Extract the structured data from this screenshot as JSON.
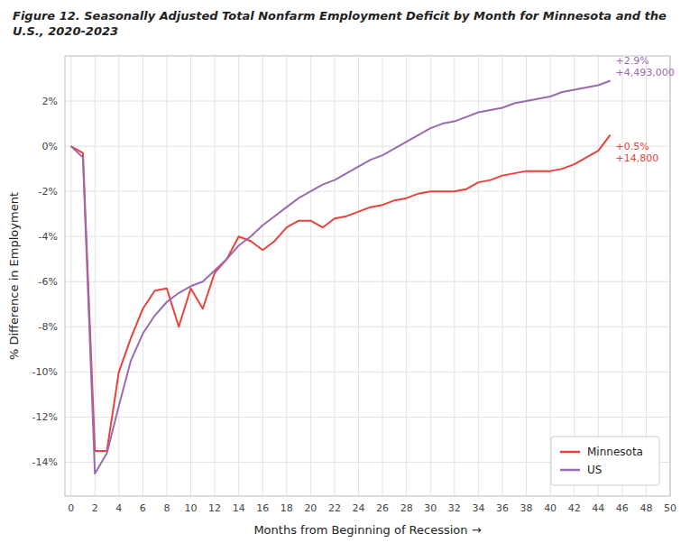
{
  "chart_data": {
    "type": "line",
    "title": "Figure 12. Seasonally Adjusted Total Nonfarm Employment Deficit by Month for Minnesota and the\nU.S., 2020-2023",
    "xlabel": "Months from Beginning of Recession →",
    "ylabel": "% Difference in Employment",
    "x": [
      0,
      1,
      2,
      3,
      4,
      5,
      6,
      7,
      8,
      9,
      10,
      11,
      12,
      13,
      14,
      15,
      16,
      17,
      18,
      19,
      20,
      21,
      22,
      23,
      24,
      25,
      26,
      27,
      28,
      29,
      30,
      31,
      32,
      33,
      34,
      35,
      36,
      37,
      38,
      39,
      40,
      41,
      42,
      43,
      44,
      45
    ],
    "series": [
      {
        "name": "Minnesota",
        "color": "#e8433a",
        "values": [
          0.0,
          -0.3,
          -13.5,
          -13.5,
          -10.0,
          -8.5,
          -7.2,
          -6.4,
          -6.3,
          -8.0,
          -6.3,
          -7.2,
          -5.6,
          -5.0,
          -4.0,
          -4.2,
          -4.6,
          -4.2,
          -3.6,
          -3.3,
          -3.3,
          -3.6,
          -3.2,
          -3.1,
          -2.9,
          -2.7,
          -2.6,
          -2.4,
          -2.3,
          -2.1,
          -2.0,
          -2.0,
          -2.0,
          -1.9,
          -1.6,
          -1.5,
          -1.3,
          -1.2,
          -1.1,
          -1.1,
          -1.1,
          -1.0,
          -0.8,
          -0.5,
          -0.2,
          0.5
        ]
      },
      {
        "name": "US",
        "color": "#9b6ab0",
        "values": [
          0.0,
          -0.5,
          -14.5,
          -13.6,
          -11.5,
          -9.5,
          -8.3,
          -7.5,
          -6.9,
          -6.5,
          -6.2,
          -6.0,
          -5.5,
          -5.0,
          -4.4,
          -4.0,
          -3.5,
          -3.1,
          -2.7,
          -2.3,
          -2.0,
          -1.7,
          -1.5,
          -1.2,
          -0.9,
          -0.6,
          -0.4,
          -0.1,
          0.2,
          0.5,
          0.8,
          1.0,
          1.1,
          1.3,
          1.5,
          1.6,
          1.7,
          1.9,
          2.0,
          2.1,
          2.2,
          2.4,
          2.5,
          2.6,
          2.7,
          2.9
        ]
      }
    ],
    "annotations": [
      {
        "text": "+0.5%\n+14,800",
        "x": 45,
        "y": 0.5,
        "color": "#e8433a"
      },
      {
        "text": "+2.9%\n+4,493,000",
        "x": 45,
        "y": 2.9,
        "color": "#9b6ab0"
      }
    ],
    "xlim": [
      -0.5,
      50
    ],
    "ylim": [
      -15.5,
      4.0
    ],
    "xticks": [
      0,
      2,
      4,
      6,
      8,
      10,
      12,
      14,
      16,
      18,
      20,
      22,
      24,
      26,
      28,
      30,
      32,
      34,
      36,
      38,
      40,
      42,
      44,
      46,
      48,
      50
    ],
    "yticks": [
      {
        "value": 2,
        "label": "2%"
      },
      {
        "value": 0,
        "label": "0%"
      },
      {
        "value": -2,
        "label": "-2%"
      },
      {
        "value": -4,
        "label": "-4%"
      },
      {
        "value": -6,
        "label": "-6%"
      },
      {
        "value": -8,
        "label": "-8%"
      },
      {
        "value": -10,
        "label": "-10%"
      },
      {
        "value": -12,
        "label": "-12%"
      },
      {
        "value": -14,
        "label": "-14%"
      }
    ],
    "grid": true,
    "legend": "lower right"
  }
}
